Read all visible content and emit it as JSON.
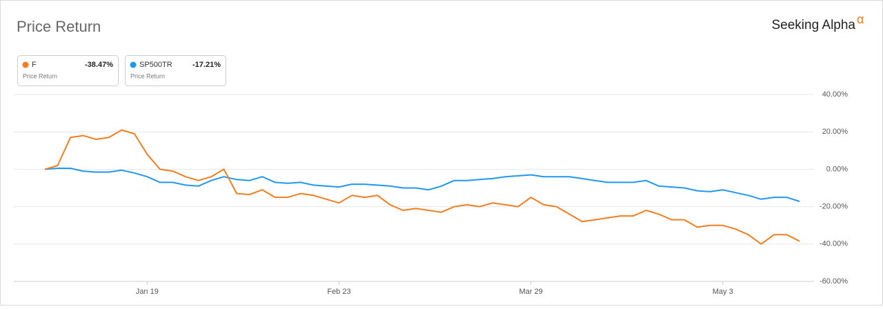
{
  "chart_data": {
    "type": "line",
    "title": "Price Return",
    "brand": "Seeking Alpha",
    "brand_mark": "α",
    "categories": [
      null,
      null,
      null,
      null,
      null,
      null,
      null,
      null,
      "Jan 19",
      null,
      null,
      null,
      null,
      null,
      null,
      null,
      null,
      null,
      null,
      null,
      null,
      null,
      null,
      "Feb 23",
      null,
      null,
      null,
      null,
      null,
      null,
      null,
      null,
      null,
      null,
      null,
      null,
      null,
      null,
      "Mar 29",
      null,
      null,
      null,
      null,
      null,
      null,
      null,
      null,
      null,
      null,
      null,
      null,
      null,
      null,
      "May 3",
      null,
      null,
      null,
      null,
      null,
      null
    ],
    "series": [
      {
        "name": "F",
        "color": "#f57c1f",
        "metric": "Price Return",
        "change": -38.47,
        "change_label": "-38.47%",
        "values": [
          0,
          2,
          17,
          18,
          16,
          17,
          21,
          19,
          8,
          0,
          -1,
          -4,
          -6,
          -4,
          0,
          -13,
          -13.5,
          -11,
          -15,
          -15,
          -13,
          -14,
          -16,
          -18,
          -14,
          -15,
          -14,
          -19,
          -22,
          -21,
          -22,
          -23,
          -20,
          -19,
          -20,
          -18,
          -19,
          -20,
          -15,
          -19,
          -20,
          -24,
          -28,
          -27,
          -26,
          -25,
          -25,
          -22,
          -24,
          -27,
          -27,
          -31,
          -30,
          -30,
          -32,
          -35,
          -40,
          -35,
          -35,
          -38.47
        ]
      },
      {
        "name": "SP500TR",
        "color": "#2196f3",
        "metric": "Price Return",
        "change": -17.21,
        "change_label": "-17.21%",
        "values": [
          0,
          0.5,
          0.5,
          -1,
          -1.5,
          -1.5,
          -0.5,
          -2,
          -4,
          -7,
          -7,
          -8.5,
          -9,
          -6,
          -4,
          -5.5,
          -6,
          -4,
          -7,
          -7.5,
          -7,
          -8.5,
          -9,
          -9.5,
          -8,
          -8,
          -8.5,
          -9,
          -10,
          -10,
          -11,
          -9,
          -6,
          -6,
          -5.5,
          -5,
          -4,
          -3.5,
          -3,
          -4,
          -4,
          -4,
          -5,
          -6,
          -7,
          -7,
          -7,
          -6,
          -9,
          -9.5,
          -10,
          -11.5,
          -12,
          -11,
          -12.5,
          -14,
          -16,
          -15,
          -15,
          -17.21
        ]
      }
    ],
    "ylim": [
      -60,
      40
    ],
    "yticks": [
      {
        "value": 40,
        "label": "40.00%"
      },
      {
        "value": 20,
        "label": "20.00%"
      },
      {
        "value": 0,
        "label": "0.00%"
      },
      {
        "value": -20,
        "label": "-20.00%"
      },
      {
        "value": -40,
        "label": "-40.00%"
      },
      {
        "value": -60,
        "label": "-60.00%"
      }
    ],
    "grid": true
  }
}
